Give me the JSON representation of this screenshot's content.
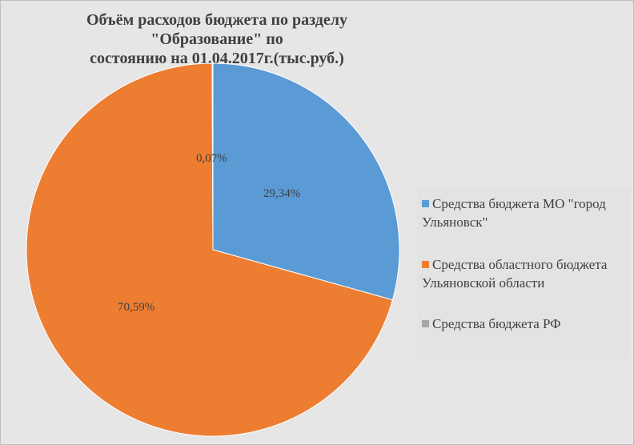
{
  "chart_data": {
    "type": "pie",
    "title_lines": [
      "Объём расходов бюджета по разделу \"Образование\" по",
      "состоянию на 01.04.2017г.(тыс.руб.)"
    ],
    "start_angle_deg": 0,
    "direction": "clockwise",
    "legend_position": "right",
    "slices": [
      {
        "legend_lines": [
          "Средства бюджета МО \"город",
          "Ульяновск\""
        ],
        "label": "29,34%",
        "value": 29.34,
        "color": "#5b9bd5"
      },
      {
        "legend_lines": [
          "Средства областного бюджета",
          "Ульяновской области"
        ],
        "label": "70,59%",
        "value": 70.59,
        "color": "#ed7d31"
      },
      {
        "legend_lines": [
          "Средства бюджета РФ"
        ],
        "label": "0,07%",
        "value": 0.07,
        "color": "#a5a5a5"
      }
    ]
  }
}
